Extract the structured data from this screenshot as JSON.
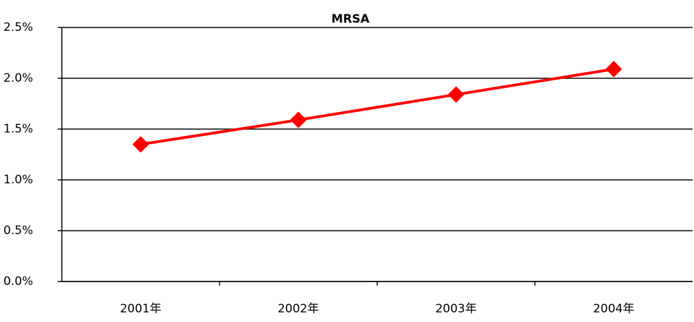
{
  "chart_data": {
    "type": "line",
    "title": "MRSA",
    "categories": [
      "2001年",
      "2002年",
      "2003年",
      "2004年"
    ],
    "series": [
      {
        "name": "MRSA",
        "color": "#ff0000",
        "values": [
          1.35,
          1.59,
          1.84,
          2.09
        ]
      }
    ],
    "ylim": [
      0,
      2.5
    ],
    "yticks": [
      {
        "value": 0,
        "label": "0.0%"
      },
      {
        "value": 0.5,
        "label": "0.5%"
      },
      {
        "value": 1,
        "label": "1.0%"
      },
      {
        "value": 1.5,
        "label": "1.5%"
      },
      {
        "value": 2,
        "label": "2.0%"
      },
      {
        "value": 2.5,
        "label": "2.5%"
      }
    ],
    "grid": true
  }
}
